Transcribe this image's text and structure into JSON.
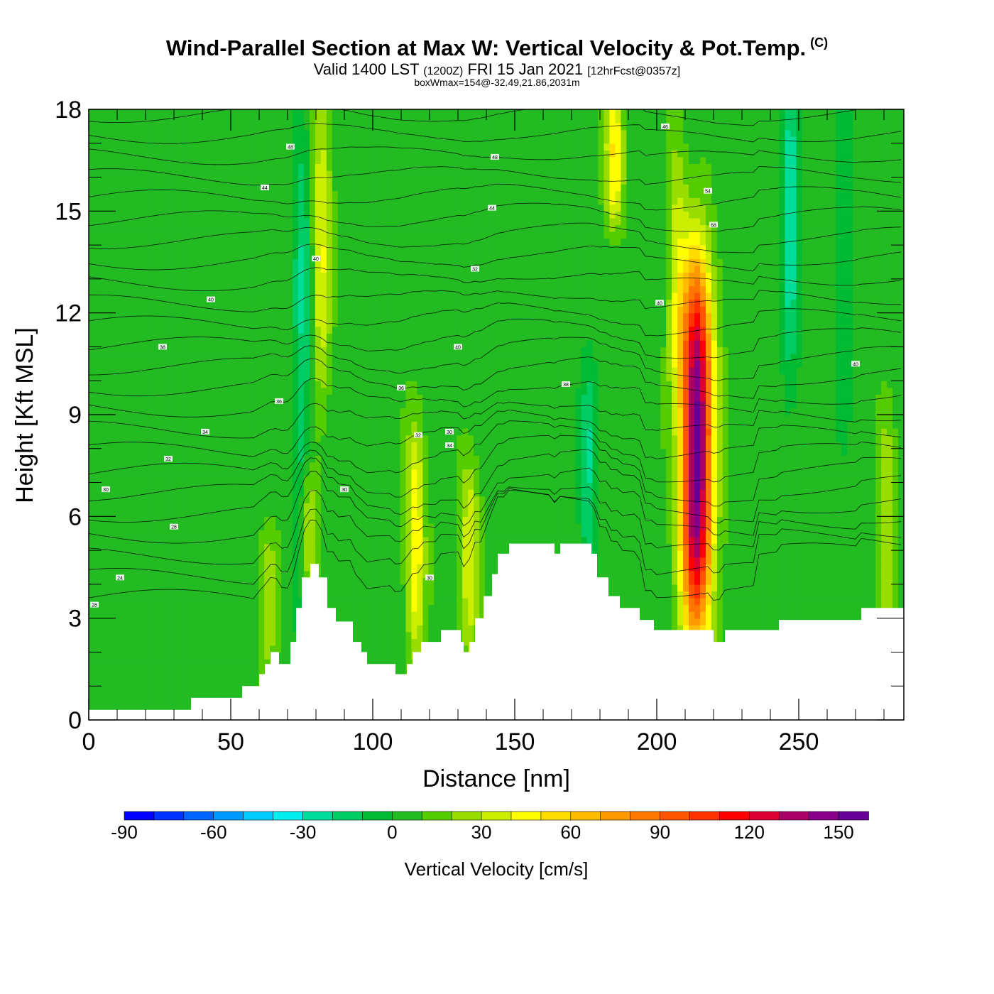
{
  "title": "Wind-Parallel Section at Max W: Vertical Velocity & Pot.Temp.",
  "title_mark": "(C)",
  "subtitle_a": "Valid 1400 LST",
  "subtitle_b": "(1200Z)",
  "subtitle_c": "FRI 15 Jan 2021",
  "subtitle_d": "[12hrFcst@0357z]",
  "subline": "boxWmax=154@-32.49,21.86,2031m",
  "chart_data": {
    "type": "heatmap",
    "xlabel": "Distance [nm]",
    "ylabel": "Height [Kft MSL]",
    "xlim": [
      0,
      287
    ],
    "ylim": [
      0,
      18
    ],
    "x_ticks": [
      "0",
      "50",
      "100",
      "150",
      "200",
      "250"
    ],
    "y_ticks": [
      "0",
      "3",
      "6",
      "9",
      "12",
      "15",
      "18"
    ],
    "colorbar": {
      "label": "Vertical Velocity [cm/s]",
      "min": -90,
      "max": 160,
      "step": 10,
      "tick_labels": [
        "-90",
        "-60",
        "-30",
        "0",
        "30",
        "60",
        "90",
        "120",
        "150"
      ],
      "colors": [
        "#0000ff",
        "#0033ff",
        "#0066ff",
        "#0099ff",
        "#00ccff",
        "#00eeee",
        "#00dd99",
        "#00cc66",
        "#00bb33",
        "#22bb22",
        "#55cc00",
        "#99dd00",
        "#ccee00",
        "#ffff00",
        "#ffdd00",
        "#ffbb00",
        "#ff9900",
        "#ff7700",
        "#ff5500",
        "#ff3300",
        "#ff0000",
        "#dd0033",
        "#aa0066",
        "#880088",
        "#660099"
      ]
    },
    "wmax": {
      "value": 154,
      "x": 214,
      "y": 8
    },
    "updrafts": [
      {
        "x": 82,
        "y_bottom": 10,
        "y_top": 18,
        "peak": 40
      },
      {
        "x": 77,
        "y_bottom": 4,
        "y_top": 7,
        "peak": 40
      },
      {
        "x": 63,
        "y_bottom": 2,
        "y_top": 5,
        "peak": 30
      },
      {
        "x": 115,
        "y_bottom": 2.5,
        "y_top": 8,
        "peak": 50
      },
      {
        "x": 134,
        "y_bottom": 2.5,
        "y_top": 7,
        "peak": 40
      },
      {
        "x": 185,
        "y_bottom": 15,
        "y_top": 18,
        "peak": 50
      },
      {
        "x": 214,
        "y_bottom": 3,
        "y_top": 13,
        "peak": 154
      },
      {
        "x": 207,
        "y_bottom": 10,
        "y_top": 17,
        "peak": 30
      },
      {
        "x": 281,
        "y_bottom": 3,
        "y_top": 9,
        "peak": 30
      }
    ],
    "downdrafts": [
      {
        "x": 75,
        "y_bottom": 3,
        "y_top": 18,
        "peak": -20
      },
      {
        "x": 176,
        "y_bottom": 4,
        "y_top": 10,
        "peak": -20
      },
      {
        "x": 247,
        "y_bottom": 11,
        "y_top": 18,
        "peak": -30
      },
      {
        "x": 266,
        "y_bottom": 9,
        "y_top": 18,
        "peak": -10
      }
    ],
    "terrain": [
      [
        0,
        0.3
      ],
      [
        36,
        0.3
      ],
      [
        36,
        0.65
      ],
      [
        54,
        0.65
      ],
      [
        54,
        1.0
      ],
      [
        60,
        1.0
      ],
      [
        60,
        1.35
      ],
      [
        62,
        1.35
      ],
      [
        62,
        1.65
      ],
      [
        64,
        1.65
      ],
      [
        64,
        2.0
      ],
      [
        67,
        2.0
      ],
      [
        67,
        1.65
      ],
      [
        71,
        1.65
      ],
      [
        71,
        2.3
      ],
      [
        73,
        2.3
      ],
      [
        73,
        3.3
      ],
      [
        75,
        3.3
      ],
      [
        75,
        4.2
      ],
      [
        78,
        4.2
      ],
      [
        78,
        4.6
      ],
      [
        81,
        4.6
      ],
      [
        81,
        4.2
      ],
      [
        84,
        4.2
      ],
      [
        84,
        3.3
      ],
      [
        87,
        3.3
      ],
      [
        87,
        2.9
      ],
      [
        93,
        2.9
      ],
      [
        93,
        2.3
      ],
      [
        96,
        2.3
      ],
      [
        96,
        2.0
      ],
      [
        98,
        2.0
      ],
      [
        98,
        1.65
      ],
      [
        108,
        1.65
      ],
      [
        108,
        1.35
      ],
      [
        112,
        1.35
      ],
      [
        112,
        1.65
      ],
      [
        114,
        1.65
      ],
      [
        114,
        2.0
      ],
      [
        117,
        2.0
      ],
      [
        117,
        2.3
      ],
      [
        124,
        2.3
      ],
      [
        124,
        2.65
      ],
      [
        131,
        2.65
      ],
      [
        131,
        2.3
      ],
      [
        132,
        2.3
      ],
      [
        132,
        2.0
      ],
      [
        134,
        2.0
      ],
      [
        134,
        2.3
      ],
      [
        136,
        2.3
      ],
      [
        136,
        3.0
      ],
      [
        139,
        3.0
      ],
      [
        139,
        3.65
      ],
      [
        142,
        3.65
      ],
      [
        142,
        4.3
      ],
      [
        144,
        4.3
      ],
      [
        144,
        4.9
      ],
      [
        148,
        4.9
      ],
      [
        148,
        5.2
      ],
      [
        164,
        5.2
      ],
      [
        164,
        4.9
      ],
      [
        166,
        4.9
      ],
      [
        166,
        5.2
      ],
      [
        177,
        5.2
      ],
      [
        177,
        4.9
      ],
      [
        179,
        4.9
      ],
      [
        179,
        4.2
      ],
      [
        183,
        4.2
      ],
      [
        183,
        3.65
      ],
      [
        187,
        3.65
      ],
      [
        187,
        3.3
      ],
      [
        194,
        3.3
      ],
      [
        194,
        2.95
      ],
      [
        199,
        2.95
      ],
      [
        199,
        2.65
      ],
      [
        220,
        2.65
      ],
      [
        220,
        2.3
      ],
      [
        224,
        2.3
      ],
      [
        224,
        2.65
      ],
      [
        243,
        2.65
      ],
      [
        243,
        2.95
      ],
      [
        272,
        2.95
      ],
      [
        272,
        3.3
      ],
      [
        287,
        3.3
      ],
      [
        287,
        0
      ],
      [
        0,
        0
      ]
    ],
    "theta_contour_labels": [
      {
        "text": "28",
        "x": 2,
        "y": 3.4
      },
      {
        "text": "24",
        "x": 11,
        "y": 4.2
      },
      {
        "text": "28",
        "x": 30,
        "y": 5.7
      },
      {
        "text": "30",
        "x": 6,
        "y": 6.8
      },
      {
        "text": "32",
        "x": 28,
        "y": 7.7
      },
      {
        "text": "34",
        "x": 41,
        "y": 8.5
      },
      {
        "text": "36",
        "x": 67,
        "y": 9.4
      },
      {
        "text": "38",
        "x": 26,
        "y": 11.0
      },
      {
        "text": "40",
        "x": 43,
        "y": 12.4
      },
      {
        "text": "40",
        "x": 80,
        "y": 13.6
      },
      {
        "text": "44",
        "x": 62,
        "y": 15.7
      },
      {
        "text": "48",
        "x": 71,
        "y": 16.9
      },
      {
        "text": "48",
        "x": 143,
        "y": 16.6
      },
      {
        "text": "46",
        "x": 203,
        "y": 17.5
      },
      {
        "text": "44",
        "x": 142,
        "y": 15.1
      },
      {
        "text": "32",
        "x": 136,
        "y": 13.3
      },
      {
        "text": "40",
        "x": 130,
        "y": 11.0
      },
      {
        "text": "36",
        "x": 110,
        "y": 9.8
      },
      {
        "text": "32",
        "x": 116,
        "y": 8.4
      },
      {
        "text": "30",
        "x": 127,
        "y": 8.5
      },
      {
        "text": "34",
        "x": 127,
        "y": 8.1
      },
      {
        "text": "30",
        "x": 90,
        "y": 6.8
      },
      {
        "text": "30",
        "x": 120,
        "y": 4.2
      },
      {
        "text": "38",
        "x": 168,
        "y": 9.9
      },
      {
        "text": "40",
        "x": 201,
        "y": 12.3
      },
      {
        "text": "54",
        "x": 218,
        "y": 15.6
      },
      {
        "text": "68",
        "x": 220,
        "y": 14.6
      },
      {
        "text": "40",
        "x": 270,
        "y": 10.5
      }
    ]
  }
}
